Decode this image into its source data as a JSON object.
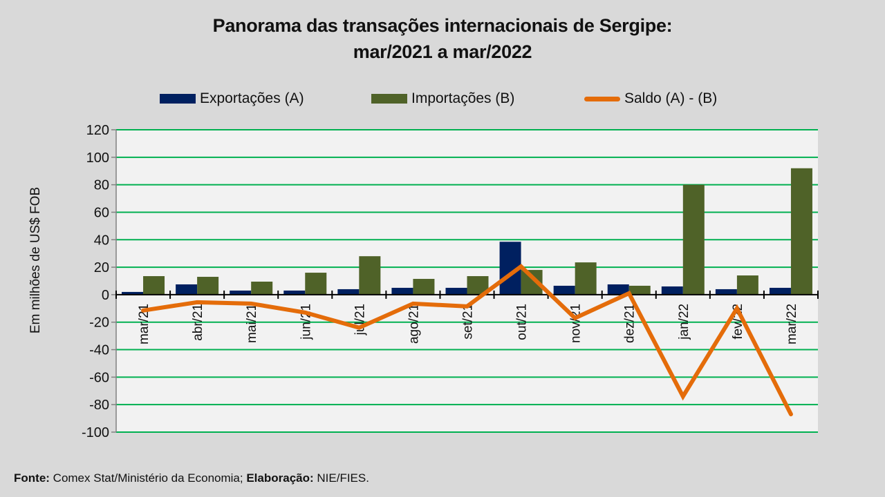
{
  "chart_data": {
    "type": "bar",
    "title": "Panorama  das transações internacionais de Sergipe:",
    "subtitle": "mar/2021 a mar/2022",
    "xlabel": "",
    "ylabel": "Em milhões de US$ FOB",
    "ylim": [
      -100,
      120
    ],
    "yticks": [
      120,
      100,
      80,
      60,
      40,
      20,
      0,
      -20,
      -40,
      -60,
      -80,
      -100
    ],
    "grid": true,
    "legend_position": "top",
    "categories": [
      "mar/21",
      "abr/21",
      "mai/21",
      "jun/21",
      "jul/21",
      "ago/21",
      "set/21",
      "out/21",
      "nov/21",
      "dez/21",
      "jan/22",
      "fev/22",
      "mar/22"
    ],
    "series": [
      {
        "name": "Exportações (A)",
        "type": "bar",
        "color": "#002060",
        "values": [
          2,
          7.5,
          3,
          3,
          4,
          5,
          5,
          38.5,
          6.5,
          7.5,
          6,
          4,
          5
        ]
      },
      {
        "name": "Importações (B)",
        "type": "bar",
        "color": "#4f6228",
        "values": [
          13.5,
          13,
          9.5,
          16,
          28,
          11.5,
          13.5,
          18,
          23.5,
          6.5,
          80,
          14,
          92
        ]
      },
      {
        "name": "Saldo (A) - (B)",
        "type": "line",
        "color": "#e46c0a",
        "values": [
          -11.5,
          -5.5,
          -6.5,
          -13,
          -24,
          -6.5,
          -8.5,
          20.5,
          -17,
          1,
          -74,
          -10,
          -87
        ]
      }
    ]
  },
  "footer": {
    "source_label": "Fonte:",
    "source_text": " Comex Stat/Ministério da Economia; ",
    "credit_label": "Elaboração:",
    "credit_text": " NIE/FIES."
  },
  "colors": {
    "background": "#d9d9d9",
    "plot_background": "#f2f2f2",
    "gridline": "#00b050"
  }
}
